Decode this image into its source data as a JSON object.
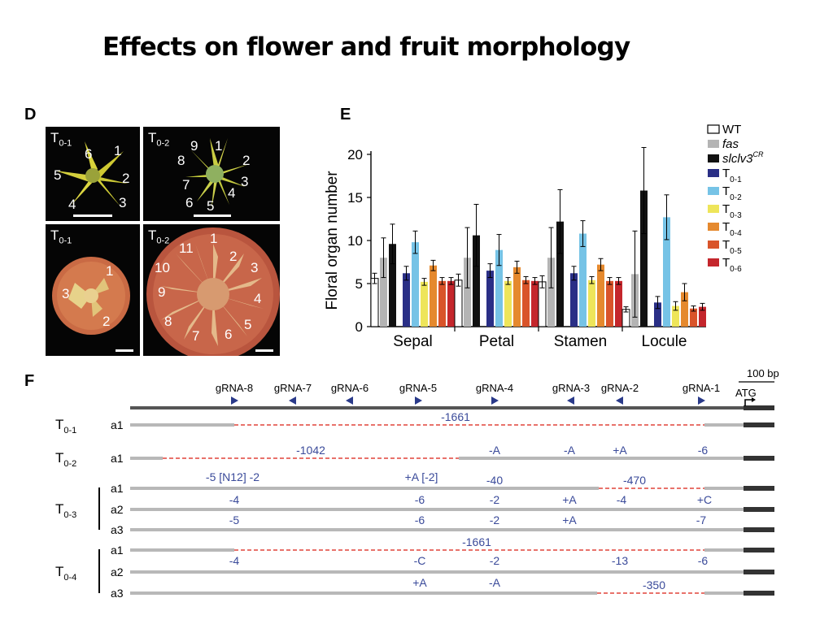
{
  "title": "Effects on flower and fruit morphology",
  "panel_d": {
    "letter": "D",
    "photos": [
      {
        "label_main": "T",
        "label_sub": "0-1",
        "numbers": [
          "6",
          "1",
          "5",
          "2",
          "4",
          "3"
        ]
      },
      {
        "label_main": "T",
        "label_sub": "0-2",
        "numbers": [
          "9",
          "1",
          "8",
          "2",
          "7",
          "3",
          "4",
          "6",
          "5"
        ]
      },
      {
        "label_main": "T",
        "label_sub": "0-1",
        "numbers": [
          "1",
          "3",
          "2"
        ]
      },
      {
        "label_main": "T",
        "label_sub": "0-2",
        "numbers": [
          "11",
          "1",
          "10",
          "2",
          "3",
          "9",
          "4",
          "8",
          "5",
          "7",
          "6"
        ]
      }
    ]
  },
  "panel_e": {
    "letter": "E",
    "legend": [
      {
        "main": "WT",
        "sub": "",
        "sup": "",
        "italic": false,
        "color": "#ffffff"
      },
      {
        "main": "fas",
        "sub": "",
        "sup": "",
        "italic": true,
        "color": "#b4b4b4"
      },
      {
        "main": "slclv3",
        "sub": "",
        "sup": "CR",
        "italic": true,
        "color": "#111111"
      },
      {
        "main": "T",
        "sub": "0-1",
        "sup": "",
        "italic": false,
        "color": "#2a2f86"
      },
      {
        "main": "T",
        "sub": "0-2",
        "sup": "",
        "italic": false,
        "color": "#76c3e6"
      },
      {
        "main": "T",
        "sub": "0-3",
        "sup": "",
        "italic": false,
        "color": "#eee55a"
      },
      {
        "main": "T",
        "sub": "0-4",
        "sup": "",
        "italic": false,
        "color": "#e5892e"
      },
      {
        "main": "T",
        "sub": "0-5",
        "sup": "",
        "italic": false,
        "color": "#d9542a"
      },
      {
        "main": "T",
        "sub": "0-6",
        "sup": "",
        "italic": false,
        "color": "#c4262c"
      }
    ]
  },
  "chart_data": {
    "type": "bar",
    "title": "",
    "xlabel": "",
    "ylabel": "Floral organ number",
    "ylim": [
      0,
      20
    ],
    "yticks": [
      0,
      5,
      10,
      15,
      20
    ],
    "categories": [
      "Sepal",
      "Petal",
      "Stamen",
      "Locule"
    ],
    "legend_position": "top-right",
    "series": [
      {
        "name": "WT",
        "color": "#ffffff",
        "values": [
          5.6,
          5.4,
          5.2,
          2.0
        ],
        "err": [
          0.6,
          0.7,
          0.7,
          0.3
        ]
      },
      {
        "name": "fas",
        "color": "#b4b4b4",
        "values": [
          8.0,
          8.0,
          8.0,
          6.1
        ],
        "err": [
          2.3,
          3.5,
          3.5,
          5.0
        ]
      },
      {
        "name": "slclv3CR",
        "color": "#111111",
        "values": [
          9.6,
          10.6,
          12.2,
          15.8
        ],
        "err": [
          2.3,
          3.6,
          3.7,
          5.0
        ]
      },
      {
        "name": "T0-1",
        "color": "#2a2f86",
        "values": [
          6.2,
          6.5,
          6.2,
          2.8
        ],
        "err": [
          0.8,
          0.8,
          0.8,
          0.7
        ]
      },
      {
        "name": "T0-2",
        "color": "#76c3e6",
        "values": [
          9.8,
          8.9,
          10.8,
          12.7
        ],
        "err": [
          1.3,
          1.8,
          1.5,
          2.6
        ]
      },
      {
        "name": "T0-3",
        "color": "#eee55a",
        "values": [
          5.2,
          5.3,
          5.4,
          2.4
        ],
        "err": [
          0.4,
          0.4,
          0.4,
          0.5
        ]
      },
      {
        "name": "T0-4",
        "color": "#e5892e",
        "values": [
          7.1,
          6.9,
          7.2,
          4.0
        ],
        "err": [
          0.6,
          0.7,
          0.7,
          1.0
        ]
      },
      {
        "name": "T0-5",
        "color": "#d9542a",
        "values": [
          5.3,
          5.4,
          5.3,
          2.1
        ],
        "err": [
          0.4,
          0.4,
          0.4,
          0.3
        ]
      },
      {
        "name": "T0-6",
        "color": "#c4262c",
        "values": [
          5.3,
          5.3,
          5.3,
          2.3
        ],
        "err": [
          0.4,
          0.4,
          0.4,
          0.4
        ]
      }
    ]
  },
  "panel_f": {
    "letter": "F",
    "scale_label": "100 bp",
    "atg_label": "ATG",
    "grnas": [
      {
        "name": "gRNA-8",
        "dir": "right"
      },
      {
        "name": "gRNA-7",
        "dir": "left"
      },
      {
        "name": "gRNA-6",
        "dir": "left"
      },
      {
        "name": "gRNA-5",
        "dir": "right"
      },
      {
        "name": "gRNA-4",
        "dir": "right"
      },
      {
        "name": "gRNA-3",
        "dir": "left"
      },
      {
        "name": "gRNA-2",
        "dir": "left"
      },
      {
        "name": "gRNA-1",
        "dir": "right"
      }
    ],
    "lines": [
      {
        "main": "T",
        "sub": "0-1"
      },
      {
        "main": "T",
        "sub": "0-2"
      },
      {
        "main": "T",
        "sub": "0-3"
      },
      {
        "main": "T",
        "sub": "0-4"
      }
    ],
    "alleles": [
      {
        "label": "a1",
        "annotations": [
          "-1661"
        ]
      },
      {
        "label": "a1",
        "annotations": [
          "-1042",
          "-A",
          "-A",
          "+A",
          "-6"
        ]
      },
      {
        "label": "a1",
        "annotations": [
          "-5 [N12] -2",
          "+A [-2]",
          "-40",
          "-470"
        ]
      },
      {
        "label": "a2",
        "annotations": [
          "-4",
          "-6",
          "-2",
          "+A",
          "-4",
          "+C"
        ]
      },
      {
        "label": "a3",
        "annotations": [
          "-5",
          "-6",
          "-2",
          "+A",
          "-7"
        ]
      },
      {
        "label": "a1",
        "annotations": [
          "-1661"
        ]
      },
      {
        "label": "a2",
        "annotations": [
          "-4",
          "-C",
          "-2",
          "-13",
          "-6"
        ]
      },
      {
        "label": "a3",
        "annotations": [
          "+A",
          "-A",
          "-350"
        ]
      }
    ]
  }
}
